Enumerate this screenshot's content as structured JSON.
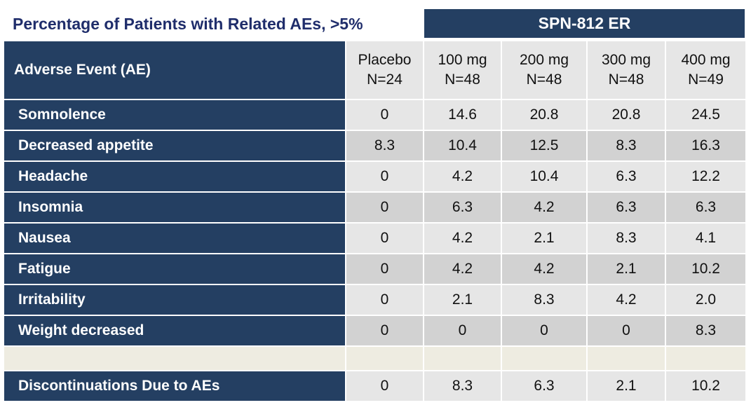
{
  "title": "Percentage of Patients with Related AEs, >5%",
  "drug_header": "SPN-812 ER",
  "table": {
    "label_header": "Adverse Event (AE)",
    "columns": [
      {
        "dose": "Placebo",
        "n": "N=24"
      },
      {
        "dose": "100 mg",
        "n": "N=48"
      },
      {
        "dose": "200 mg",
        "n": "N=48"
      },
      {
        "dose": "300 mg",
        "n": "N=48"
      },
      {
        "dose": "400 mg",
        "n": "N=49"
      }
    ],
    "rows": [
      {
        "label": "Somnolence",
        "values": [
          "0",
          "14.6",
          "20.8",
          "20.8",
          "24.5"
        ]
      },
      {
        "label": "Decreased appetite",
        "values": [
          "8.3",
          "10.4",
          "12.5",
          "8.3",
          "16.3"
        ]
      },
      {
        "label": "Headache",
        "values": [
          "0",
          "4.2",
          "10.4",
          "6.3",
          "12.2"
        ]
      },
      {
        "label": "Insomnia",
        "values": [
          "0",
          "6.3",
          "4.2",
          "6.3",
          "6.3"
        ]
      },
      {
        "label": "Nausea",
        "values": [
          "0",
          "4.2",
          "2.1",
          "8.3",
          "4.1"
        ]
      },
      {
        "label": "Fatigue",
        "values": [
          "0",
          "4.2",
          "4.2",
          "2.1",
          "10.2"
        ]
      },
      {
        "label": "Irritability",
        "values": [
          "0",
          "2.1",
          "8.3",
          "4.2",
          "2.0"
        ]
      },
      {
        "label": "Weight decreased",
        "values": [
          "0",
          "0",
          "0",
          "0",
          "8.3"
        ]
      }
    ],
    "discontinuation": {
      "label": "Discontinuations Due to AEs",
      "values": [
        "0",
        "8.3",
        "6.3",
        "2.1",
        "10.2"
      ]
    }
  },
  "colors": {
    "header_bg": "#243f62",
    "title_text": "#1f2d6b",
    "cell_light": "#e6e6e6",
    "cell_dark": "#d2d2d2",
    "spacer": "#eeece1"
  }
}
